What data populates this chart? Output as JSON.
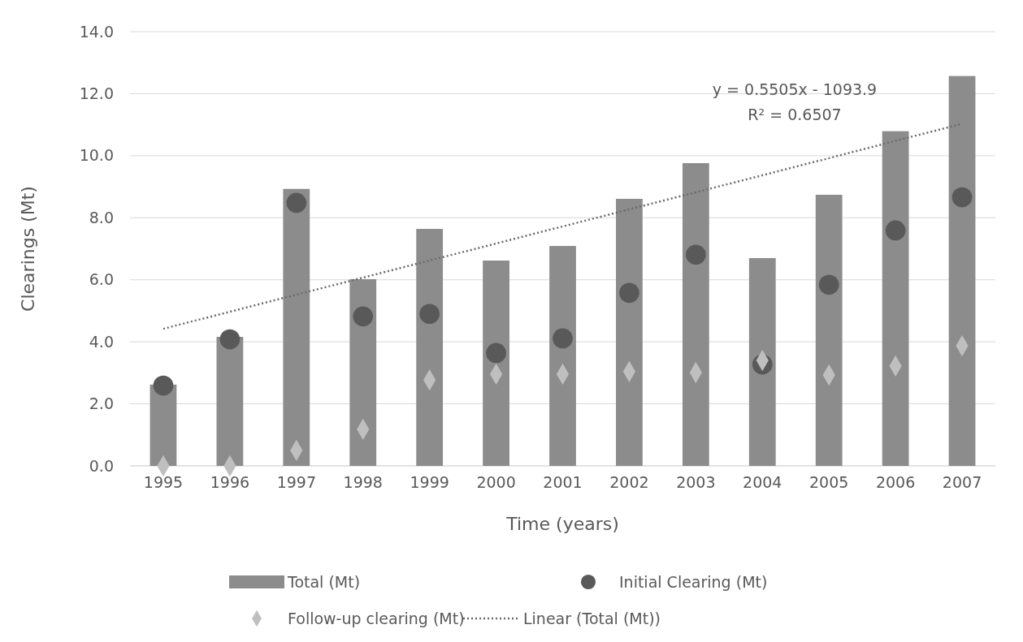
{
  "chart_data": {
    "type": "bar",
    "xlabel": "Time (years)",
    "ylabel": "Clearings (Mt)",
    "categories": [
      "1995",
      "1996",
      "1997",
      "1998",
      "1999",
      "2000",
      "2001",
      "2002",
      "2003",
      "2004",
      "2005",
      "2006",
      "2007"
    ],
    "series": [
      {
        "name": "Total (Mt)",
        "color": "#8c8c8c",
        "values": [
          2.62,
          4.16,
          8.93,
          6.02,
          7.64,
          6.62,
          7.09,
          8.61,
          9.76,
          6.7,
          8.74,
          10.79,
          12.57
        ]
      },
      {
        "name": "Initial Clearing (Mt)",
        "type": "scatter",
        "marker": "circle",
        "color": "#595959",
        "values": [
          2.59,
          4.08,
          8.48,
          4.82,
          4.9,
          3.64,
          4.11,
          5.58,
          6.81,
          3.27,
          5.84,
          7.59,
          8.66
        ]
      },
      {
        "name": "Follow-up clearing (Mt)",
        "type": "scatter",
        "marker": "diamond",
        "color": "#bfbfbf",
        "values": [
          0,
          0,
          0.5,
          1.18,
          2.77,
          2.96,
          2.96,
          3.04,
          3.01,
          3.4,
          2.93,
          3.22,
          3.87
        ]
      },
      {
        "name": "Linear (Total (Mt))",
        "type": "line",
        "line_style": "dotted",
        "color": "#6a6a6a",
        "values": [
          4.42,
          4.97,
          5.52,
          6.07,
          6.62,
          7.17,
          7.72,
          8.27,
          8.82,
          9.37,
          9.92,
          10.48,
          11.03
        ]
      }
    ],
    "ylim": [
      0,
      14
    ],
    "yticks": [
      {
        "value": 0,
        "label": "0.0"
      },
      {
        "value": 2,
        "label": "2.0"
      },
      {
        "value": 4,
        "label": "4.0"
      },
      {
        "value": 6,
        "label": "6.0"
      },
      {
        "value": 8,
        "label": "8.0"
      },
      {
        "value": 10,
        "label": "10.0"
      },
      {
        "value": 12,
        "label": "12.0"
      },
      {
        "value": 14,
        "label": "14.0"
      }
    ],
    "grid": "y",
    "legend": "bottom",
    "annotations": [
      "y = 0.5505x - 1093.9",
      "R² = 0.6507"
    ]
  }
}
